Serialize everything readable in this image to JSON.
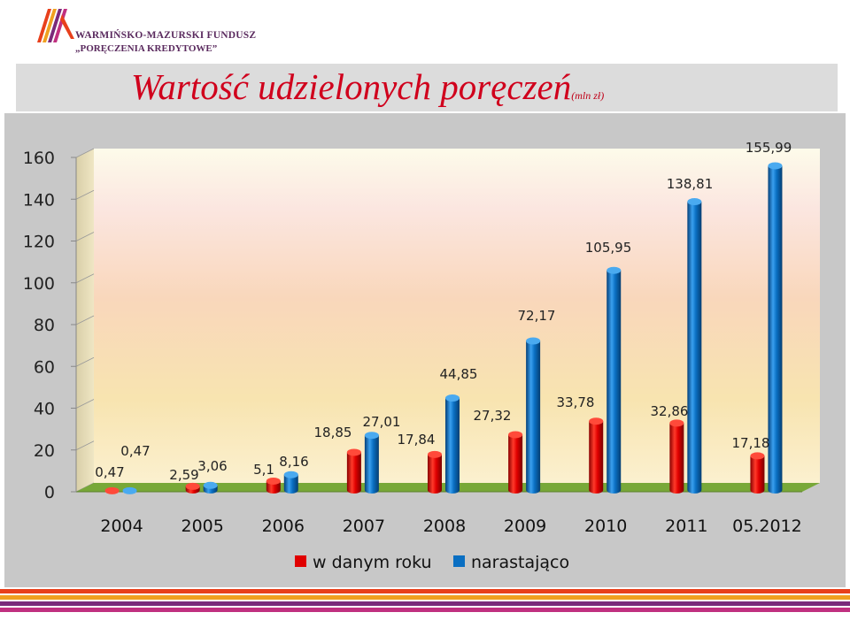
{
  "logo": {
    "line1": "WARMIŃSKO-MAZURSKI FUNDUSZ",
    "line2": "„PORĘCZENIA KREDYTOWE”"
  },
  "title": {
    "main": "Wartość udzielonych poręczeń",
    "unit": "(mln zł)"
  },
  "colors": {
    "title": "#d0001c",
    "series_red": "#e00000",
    "series_blue": "#0a6fc2",
    "floor": "#78a838",
    "frame": "#c8c8c8"
  },
  "chart_data": {
    "type": "bar",
    "categories": [
      "2004",
      "2005",
      "2006",
      "2007",
      "2008",
      "2009",
      "2010",
      "2011",
      "05.2012"
    ],
    "series": [
      {
        "name": "w danym roku",
        "values": [
          0.47,
          2.59,
          5.1,
          18.85,
          17.84,
          27.32,
          33.78,
          32.86,
          17.18
        ],
        "labels": [
          "0,47",
          "2,59",
          "5,1",
          "18,85",
          "17,84",
          "27,32",
          "33,78",
          "32,86",
          "17,18"
        ]
      },
      {
        "name": "narastająco",
        "values": [
          0.47,
          3.06,
          8.16,
          27.01,
          44.85,
          72.17,
          105.95,
          138.81,
          155.99
        ],
        "labels": [
          "0,47",
          "3,06",
          "8,16",
          "27,01",
          "44,85",
          "72,17",
          "105,95",
          "138,81",
          "155,99"
        ]
      }
    ],
    "ylim": [
      0,
      160
    ],
    "yticks": [
      "0",
      "20",
      "40",
      "60",
      "80",
      "100",
      "120",
      "140",
      "160"
    ],
    "legend_position": "bottom",
    "grid": false,
    "style": "3d-cylinder"
  }
}
